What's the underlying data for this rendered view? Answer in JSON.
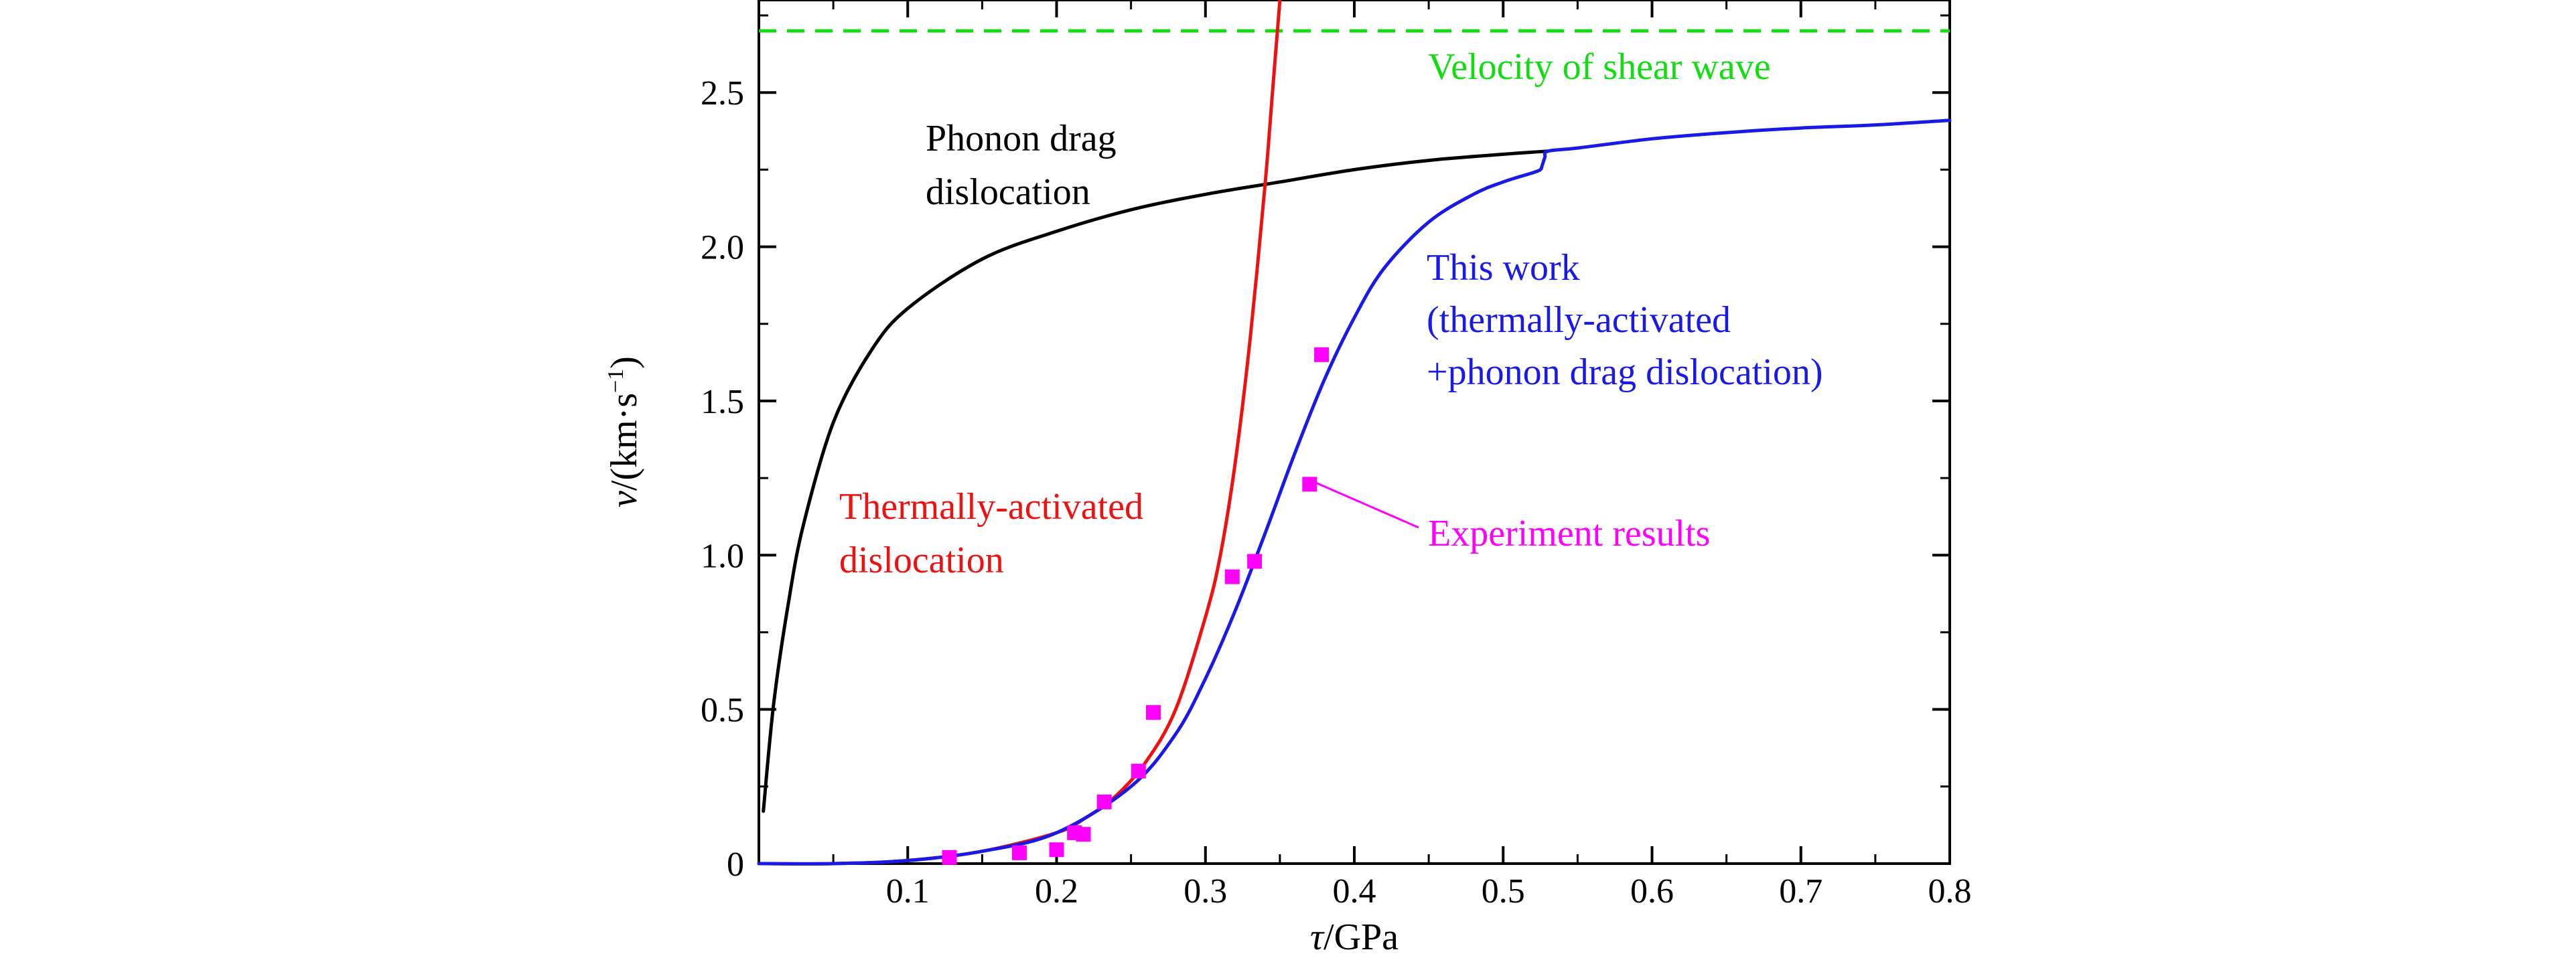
{
  "chart_data": {
    "type": "line",
    "title": "",
    "xlabel": {
      "var": "τ",
      "unit": "/GPa"
    },
    "ylabel": {
      "var": "v",
      "unit": "/(km·s",
      "sup": "−1",
      "close": ")"
    },
    "xlim": [
      0.0,
      0.8
    ],
    "ylim": [
      0,
      2.8
    ],
    "xticks": [
      0.1,
      0.2,
      0.3,
      0.4,
      0.5,
      0.6,
      0.7,
      0.8
    ],
    "xtick_labels": [
      "0.1",
      "0.2",
      "0.3",
      "0.4",
      "0.5",
      "0.6",
      "0.7",
      "0.8"
    ],
    "yticks": [
      0,
      0.5,
      1.0,
      1.5,
      2.0,
      2.5
    ],
    "ytick_labels": [
      "0",
      "0.5",
      "1.0",
      "1.5",
      "2.0",
      "2.5"
    ],
    "grid": false,
    "colors": {
      "phonon": "#000000",
      "thermal": "#ee1111",
      "this_work": "#1a1ae6",
      "experiment": "#ff00ff",
      "shear_wave": "#11dd11"
    },
    "series": [
      {
        "key": "shear_wave",
        "name": "Velocity of shear wave",
        "style": "dashed",
        "x": [
          0.0,
          0.8
        ],
        "y": [
          2.7,
          2.7
        ]
      },
      {
        "key": "phonon",
        "name": "Phonon drag dislocation",
        "x": [
          0.003,
          0.01,
          0.02,
          0.03,
          0.05,
          0.075,
          0.1,
          0.15,
          0.2,
          0.25,
          0.3,
          0.35,
          0.4,
          0.45,
          0.5,
          0.53
        ],
        "y": [
          0.17,
          0.52,
          0.85,
          1.1,
          1.43,
          1.66,
          1.8,
          1.96,
          2.05,
          2.12,
          2.17,
          2.21,
          2.25,
          2.28,
          2.3,
          2.31
        ]
      },
      {
        "key": "thermal",
        "name": "Thermally-activated dislocation",
        "x": [
          0.0,
          0.05,
          0.1,
          0.15,
          0.2,
          0.22,
          0.24,
          0.26,
          0.28,
          0.3,
          0.31,
          0.32,
          0.33,
          0.34,
          0.345,
          0.35
        ],
        "y": [
          0.0,
          0.0,
          0.01,
          0.04,
          0.1,
          0.15,
          0.22,
          0.33,
          0.5,
          0.8,
          1.0,
          1.3,
          1.7,
          2.2,
          2.5,
          2.8
        ]
      },
      {
        "key": "this_work",
        "name": "This work (thermally-activated +phonon drag dislocation)",
        "x": [
          0.0,
          0.05,
          0.1,
          0.15,
          0.2,
          0.25,
          0.28,
          0.3,
          0.32,
          0.34,
          0.36,
          0.38,
          0.4,
          0.42,
          0.45,
          0.48,
          0.5,
          0.52,
          0.525,
          0.526,
          0.528,
          0.53,
          0.55,
          0.6,
          0.65,
          0.7,
          0.75,
          0.8
        ],
        "y": [
          0.0,
          0.0,
          0.01,
          0.04,
          0.1,
          0.25,
          0.42,
          0.6,
          0.82,
          1.07,
          1.33,
          1.57,
          1.77,
          1.93,
          2.08,
          2.17,
          2.21,
          2.24,
          2.25,
          2.26,
          2.29,
          2.31,
          2.32,
          2.35,
          2.37,
          2.385,
          2.395,
          2.41
        ]
      },
      {
        "key": "experiment",
        "name": "Experiment results",
        "marker": "square",
        "x": [
          0.128,
          0.175,
          0.2,
          0.212,
          0.218,
          0.232,
          0.255,
          0.265,
          0.318,
          0.333,
          0.37,
          0.378
        ],
        "y": [
          0.02,
          0.035,
          0.045,
          0.1,
          0.095,
          0.2,
          0.3,
          0.49,
          0.93,
          0.98,
          1.23,
          1.65
        ]
      }
    ],
    "annotations": {
      "shear_wave": {
        "lines": [
          "Velocity of shear wave"
        ]
      },
      "phonon": {
        "lines": [
          "Phonon drag",
          "dislocation"
        ]
      },
      "thermal": {
        "lines": [
          "Thermally-activated",
          "dislocation"
        ]
      },
      "this_work": {
        "lines": [
          "This work",
          "(thermally-activated",
          "+phonon drag dislocation)"
        ]
      },
      "experiment": {
        "lines": [
          "Experiment results"
        ]
      }
    }
  }
}
